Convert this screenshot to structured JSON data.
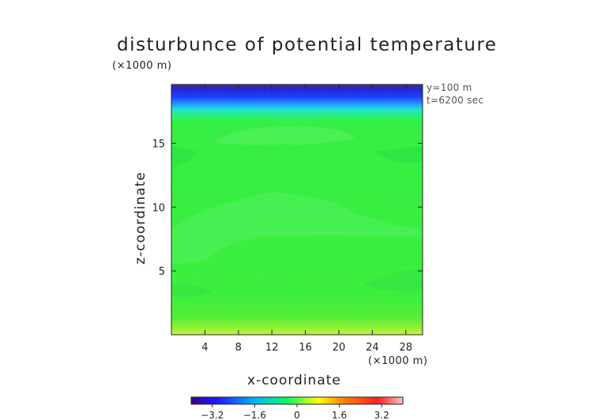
{
  "chart_data": {
    "type": "heatmap",
    "title": "disturbunce of potential temperature",
    "xlabel": "x-coordinate",
    "ylabel": "z-coordinate",
    "x_unit": "(×1000 m)",
    "z_unit": "(×1000 m)",
    "x_ticks": [
      4,
      8,
      12,
      16,
      20,
      24,
      28
    ],
    "z_ticks": [
      5,
      10,
      15
    ],
    "xlim": [
      0,
      30
    ],
    "zlim": [
      0,
      19.6
    ],
    "annotations": [
      "y=100 m",
      "t=6200 sec"
    ],
    "colorbar": {
      "range": [
        -4,
        4
      ],
      "ticks": [
        "−3.2",
        "−1.6",
        "0",
        "1.6",
        "3.2"
      ],
      "tick_values": [
        -3.2,
        -1.6,
        0,
        1.6,
        3.2
      ],
      "colors": [
        "#3a0080",
        "#1a1aff",
        "#00b4ff",
        "#00ff66",
        "#ffff00",
        "#ff8000",
        "#ff2020",
        "#ffc0c0"
      ]
    },
    "field_description": "values near 0 (green) over most of the domain; strong negative (blue/purple) layer near top z>18; slight positive (yellow-green) near bottom z<1",
    "grid": false
  }
}
